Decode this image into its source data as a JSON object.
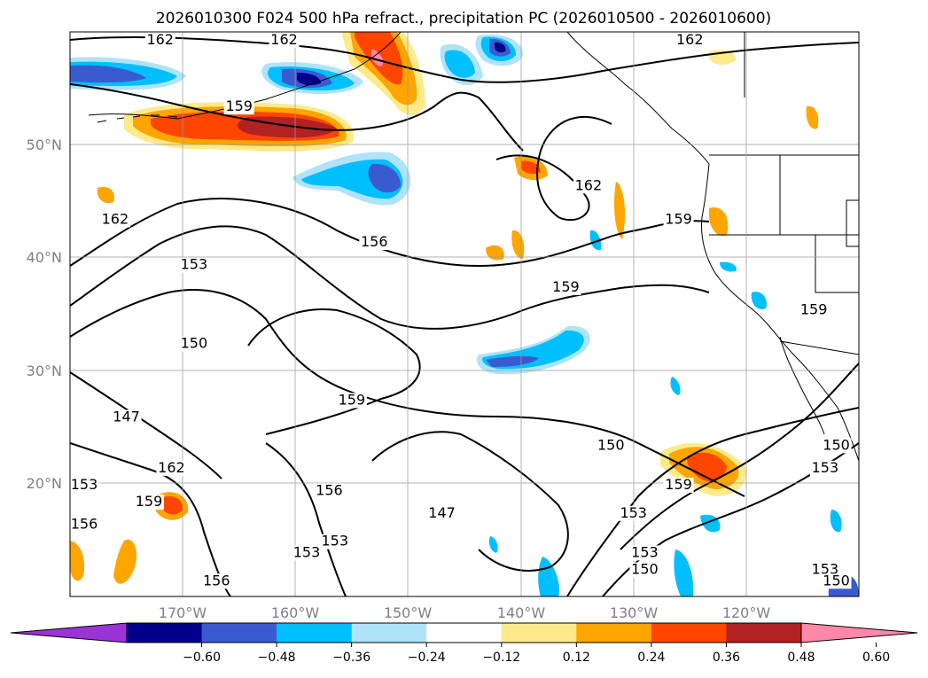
{
  "title": "2026010300 F024 500 hPa refract., precipitation PC (2026010500 - 2026010600)",
  "map": {
    "lat_ticks": [
      "50°N",
      "40°N",
      "30°N",
      "20°N"
    ],
    "lon_ticks": [
      "170°W",
      "160°W",
      "150°W",
      "140°W",
      "130°W",
      "120°W"
    ],
    "lon_range": [
      -180,
      -110
    ],
    "lat_range": [
      10,
      60
    ],
    "grid": true
  },
  "colorbar": {
    "colors": [
      "#9a34d6",
      "#00008b",
      "#3a5bd0",
      "#00bfff",
      "#aee3fa",
      "#ffffff",
      "#fdea8a",
      "#ffa500",
      "#ff4500",
      "#b22222",
      "#ff88aa"
    ],
    "ticks": [
      "−0.60",
      "−0.48",
      "−0.36",
      "−0.24",
      "−0.12",
      "0.12",
      "0.24",
      "0.36",
      "0.48",
      "0.60"
    ]
  },
  "contour_labels": [
    {
      "text": "162",
      "lon": -172,
      "lat": 59
    },
    {
      "text": "162",
      "lon": -161,
      "lat": 59
    },
    {
      "text": "162",
      "lon": -125,
      "lat": 59
    },
    {
      "text": "159",
      "lon": -165,
      "lat": 53
    },
    {
      "text": "162",
      "lon": -134,
      "lat": 46
    },
    {
      "text": "162",
      "lon": -176,
      "lat": 43
    },
    {
      "text": "156",
      "lon": -153,
      "lat": 41
    },
    {
      "text": "159",
      "lon": -126,
      "lat": 43
    },
    {
      "text": "153",
      "lon": -169,
      "lat": 39
    },
    {
      "text": "159",
      "lon": -136,
      "lat": 37
    },
    {
      "text": "150",
      "lon": -169,
      "lat": 32
    },
    {
      "text": "159",
      "lon": -114,
      "lat": 35
    },
    {
      "text": "147",
      "lon": -175,
      "lat": 25.5
    },
    {
      "text": "159",
      "lon": -155,
      "lat": 27
    },
    {
      "text": "162",
      "lon": -171,
      "lat": 21
    },
    {
      "text": "150",
      "lon": -132,
      "lat": 23
    },
    {
      "text": "153",
      "lon": -113,
      "lat": 21
    },
    {
      "text": "150",
      "lon": -112,
      "lat": 23
    },
    {
      "text": "153",
      "lon": -179,
      "lat": 19.5
    },
    {
      "text": "159",
      "lon": -173,
      "lat": 18
    },
    {
      "text": "156",
      "lon": -157,
      "lat": 19
    },
    {
      "text": "159",
      "lon": -126,
      "lat": 19.5
    },
    {
      "text": "147",
      "lon": -147,
      "lat": 17
    },
    {
      "text": "153",
      "lon": -130,
      "lat": 17
    },
    {
      "text": "156",
      "lon": -181,
      "lat": 16
    },
    {
      "text": "153",
      "lon": -156.5,
      "lat": 14.5
    },
    {
      "text": "153",
      "lon": -159,
      "lat": 13.5
    },
    {
      "text": "153",
      "lon": -129,
      "lat": 13.5
    },
    {
      "text": "150",
      "lon": -129,
      "lat": 12
    },
    {
      "text": "153",
      "lon": -113,
      "lat": 12
    },
    {
      "text": "150",
      "lon": -112,
      "lat": 11
    },
    {
      "text": "156",
      "lon": -167,
      "lat": 11
    }
  ]
}
